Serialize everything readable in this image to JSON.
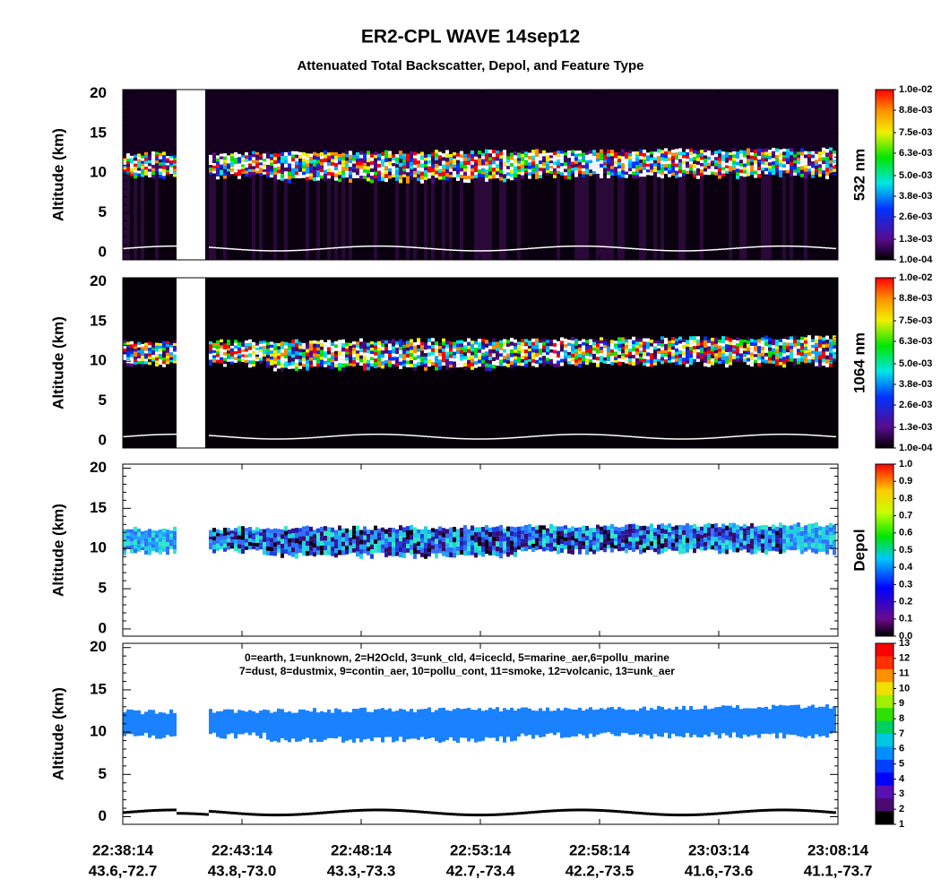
{
  "title": "ER2-CPL WAVE 14sep12",
  "subtitle": "Attenuated Total Backscatter, Depol, and Feature Type",
  "chart_data": [
    {
      "type": "backscatter",
      "ylabel": "Altitude (km)",
      "ylim": [
        -0.9,
        20.5
      ],
      "yticks": [
        0,
        5,
        10,
        15,
        20
      ],
      "colorbar": {
        "label": "532 nm",
        "lim": [
          0.0001,
          0.01
        ],
        "ticks": [
          {
            "value": 0.0001,
            "label": "1.0e-04"
          },
          {
            "value": 0.0013,
            "label": "1.3e-03"
          },
          {
            "value": 0.0026,
            "label": "2.6e-03"
          },
          {
            "value": 0.0038,
            "label": "3.8e-03"
          },
          {
            "value": 0.005,
            "label": "5.0e-03"
          },
          {
            "value": 0.0063,
            "label": "6.3e-03"
          },
          {
            "value": 0.0075,
            "label": "7.5e-03"
          },
          {
            "value": 0.0088,
            "label": "8.8e-03"
          },
          {
            "value": 0.01,
            "label": "1.0e-02"
          }
        ]
      }
    },
    {
      "type": "backscatter",
      "ylabel": "Altitude (km)",
      "ylim": [
        -0.9,
        20.5
      ],
      "yticks": [
        0,
        5,
        10,
        15,
        20
      ],
      "colorbar": {
        "label": "1064 nm",
        "lim": [
          0.0001,
          0.01
        ],
        "ticks": [
          {
            "value": 0.0001,
            "label": "1.0e-04"
          },
          {
            "value": 0.0013,
            "label": "1.3e-03"
          },
          {
            "value": 0.0026,
            "label": "2.6e-03"
          },
          {
            "value": 0.0038,
            "label": "3.8e-03"
          },
          {
            "value": 0.005,
            "label": "5.0e-03"
          },
          {
            "value": 0.0063,
            "label": "6.3e-03"
          },
          {
            "value": 0.0075,
            "label": "7.5e-03"
          },
          {
            "value": 0.0088,
            "label": "8.8e-03"
          },
          {
            "value": 0.01,
            "label": "1.0e-02"
          }
        ]
      }
    },
    {
      "type": "depol",
      "ylabel": "Altitude (km)",
      "ylim": [
        -0.9,
        20.5
      ],
      "yticks": [
        0,
        5,
        10,
        15,
        20
      ],
      "colorbar": {
        "label": "Depol",
        "lim": [
          0,
          1
        ],
        "ticks": [
          {
            "value": 0,
            "label": "0.0"
          },
          0.1,
          0.2,
          0.3,
          0.4,
          0.5,
          0.6,
          0.7,
          0.8,
          0.9,
          {
            "value": 1,
            "label": "1.0"
          }
        ]
      }
    },
    {
      "type": "feature",
      "ylabel": "Altitude (km)",
      "ylim": [
        -0.9,
        20.5
      ],
      "yticks": [
        0,
        5,
        10,
        15,
        20
      ],
      "annotations": [
        "0=earth, 1=unknown, 2=H2Ocld, 3=unk_cld, 4=icecld, 5=marine_aer,6=pollu_marine",
        "7=dust, 8=dustmix, 9=contin_aer, 10=pollu_cont, 11=smoke, 12=volcanic, 13=unk_aer"
      ],
      "colorbar": {
        "lim": [
          1,
          13
        ],
        "ticks": [
          1,
          2,
          3,
          4,
          5,
          6,
          7,
          8,
          9,
          10,
          11,
          12,
          13
        ]
      },
      "categories": [
        "22:38:14",
        "22:43:14",
        "22:48:14",
        "22:53:14",
        "22:58:14",
        "23:03:14",
        "23:08:14"
      ],
      "positions": [
        "43.6,-72.7",
        "43.8,-73.0",
        "43.3,-73.3",
        "42.7,-73.4",
        "42.2,-73.5",
        "41.6,-73.6",
        "41.1,-73.7"
      ]
    }
  ]
}
